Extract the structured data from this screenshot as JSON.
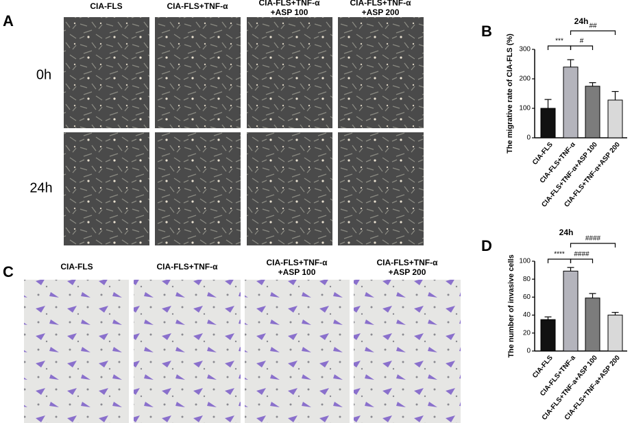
{
  "panel_labels": [
    "A",
    "B",
    "C",
    "D"
  ],
  "panel_a": {
    "columns": [
      [
        "CIA-FLS"
      ],
      [
        "CIA-FLS+TNF-α"
      ],
      [
        "CIA-FLS+TNF-α",
        "+ASP 100"
      ],
      [
        "CIA-FLS+TNF-α",
        "+ASP 200"
      ]
    ],
    "rows": [
      "0h",
      "24h"
    ]
  },
  "panel_c": {
    "columns": [
      [
        "CIA-FLS"
      ],
      [
        "CIA-FLS+TNF-α"
      ],
      [
        "CIA-FLS+TNF-α",
        "+ASP 100"
      ],
      [
        "CIA-FLS+TNF-α",
        "+ASP 200"
      ]
    ]
  },
  "chart_data": [
    {
      "type": "bar",
      "title": "24h",
      "y_label": "The migrative rate of CIA-FLS (%)",
      "categories": [
        "CIA-FLS",
        "CIA-FLS+TNF-α",
        "CIA-FLS+TNF-α+ASP 100",
        "CIA-FLS+TNF-α+ASP 200"
      ],
      "values": [
        100,
        240,
        175,
        128
      ],
      "errors": [
        30,
        25,
        12,
        29
      ],
      "colors": [
        "#111111",
        "#b4b4bc",
        "#7c7c7c",
        "#d9d9d9"
      ],
      "ylim": [
        0,
        300
      ],
      "yticks": [
        0,
        100,
        200,
        300
      ],
      "annotations": [
        "***",
        "#",
        "##"
      ]
    },
    {
      "type": "bar",
      "title": "24h",
      "y_label": "The number of invasive cells",
      "categories": [
        "CIA-FLS",
        "CIA-FLS+TNF-a",
        "CIA-FLS+TNF-a+ASP 100",
        "CIA-FLS+TNF-a+ASP 200"
      ],
      "values": [
        35,
        89,
        59,
        40
      ],
      "errors": [
        3,
        4,
        5,
        3
      ],
      "colors": [
        "#111111",
        "#b4b4bc",
        "#7c7c7c",
        "#d9d9d9"
      ],
      "ylim": [
        0,
        100
      ],
      "yticks": [
        0,
        20,
        40,
        60,
        80,
        100
      ],
      "annotations": [
        "****",
        "####",
        "####"
      ]
    }
  ]
}
